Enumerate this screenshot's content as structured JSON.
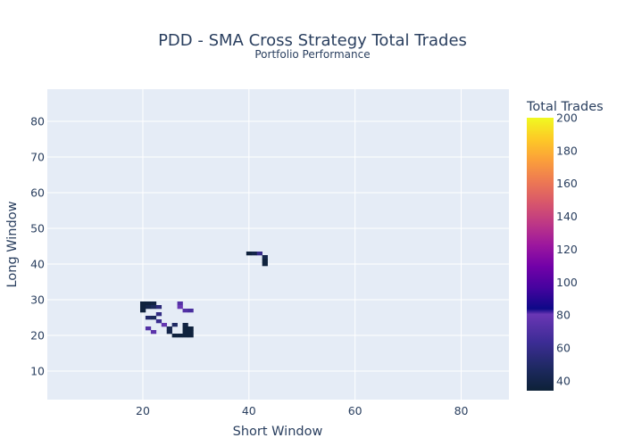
{
  "chart_data": {
    "type": "heatmap",
    "title": "PDD - SMA Cross Strategy Total Trades",
    "subtitle": "Portfolio Performance",
    "xlabel": "Short Window",
    "ylabel": "Long Window",
    "xlim": [
      2,
      89
    ],
    "ylim": [
      2,
      89
    ],
    "x_ticks": [
      20,
      40,
      60,
      80
    ],
    "y_ticks": [
      10,
      20,
      30,
      40,
      50,
      60,
      70,
      80
    ],
    "grid": true,
    "colorbar": {
      "title": "Total Trades",
      "min": 34,
      "max": 200,
      "ticks": [
        40,
        60,
        80,
        100,
        120,
        140,
        160,
        180,
        200
      ],
      "colorscale": [
        "#0d0887",
        "#46039f",
        "#7201a8",
        "#9c179e",
        "#bd3786",
        "#d8576b",
        "#ed7953",
        "#fb9f3a",
        "#fdca26",
        "#f0f921"
      ],
      "colors": {
        "low": "#0d2137",
        "mid_low": "#1d2960",
        "mid": "#3d2c96",
        "mid_high": "#6a36b4",
        "high_end": "#f0f921"
      }
    },
    "points": [
      {
        "x": 20,
        "y": 29,
        "v": 36
      },
      {
        "x": 21,
        "y": 29,
        "v": 36
      },
      {
        "x": 22,
        "y": 29,
        "v": 38
      },
      {
        "x": 20,
        "y": 28,
        "v": 36
      },
      {
        "x": 21,
        "y": 28,
        "v": 40
      },
      {
        "x": 22,
        "y": 28,
        "v": 45
      },
      {
        "x": 23,
        "y": 28,
        "v": 55
      },
      {
        "x": 20,
        "y": 27,
        "v": 36
      },
      {
        "x": 27,
        "y": 29,
        "v": 72
      },
      {
        "x": 27,
        "y": 28,
        "v": 80
      },
      {
        "x": 28,
        "y": 27,
        "v": 72
      },
      {
        "x": 29,
        "y": 27,
        "v": 68
      },
      {
        "x": 23,
        "y": 26,
        "v": 58
      },
      {
        "x": 21,
        "y": 25,
        "v": 50
      },
      {
        "x": 22,
        "y": 25,
        "v": 45
      },
      {
        "x": 23,
        "y": 24,
        "v": 62
      },
      {
        "x": 24,
        "y": 23,
        "v": 78
      },
      {
        "x": 26,
        "y": 23,
        "v": 48
      },
      {
        "x": 28,
        "y": 23,
        "v": 38
      },
      {
        "x": 21,
        "y": 22,
        "v": 72
      },
      {
        "x": 25,
        "y": 22,
        "v": 42
      },
      {
        "x": 28,
        "y": 22,
        "v": 36
      },
      {
        "x": 29,
        "y": 22,
        "v": 36
      },
      {
        "x": 22,
        "y": 21,
        "v": 75
      },
      {
        "x": 25,
        "y": 21,
        "v": 40
      },
      {
        "x": 28,
        "y": 21,
        "v": 36
      },
      {
        "x": 29,
        "y": 21,
        "v": 36
      },
      {
        "x": 26,
        "y": 20,
        "v": 36
      },
      {
        "x": 27,
        "y": 20,
        "v": 36
      },
      {
        "x": 28,
        "y": 20,
        "v": 36
      },
      {
        "x": 29,
        "y": 20,
        "v": 36
      },
      {
        "x": 40,
        "y": 43,
        "v": 36
      },
      {
        "x": 41,
        "y": 43,
        "v": 40
      },
      {
        "x": 42,
        "y": 43,
        "v": 60
      },
      {
        "x": 43,
        "y": 42,
        "v": 40
      },
      {
        "x": 43,
        "y": 41,
        "v": 36
      },
      {
        "x": 43,
        "y": 40,
        "v": 36
      }
    ]
  }
}
